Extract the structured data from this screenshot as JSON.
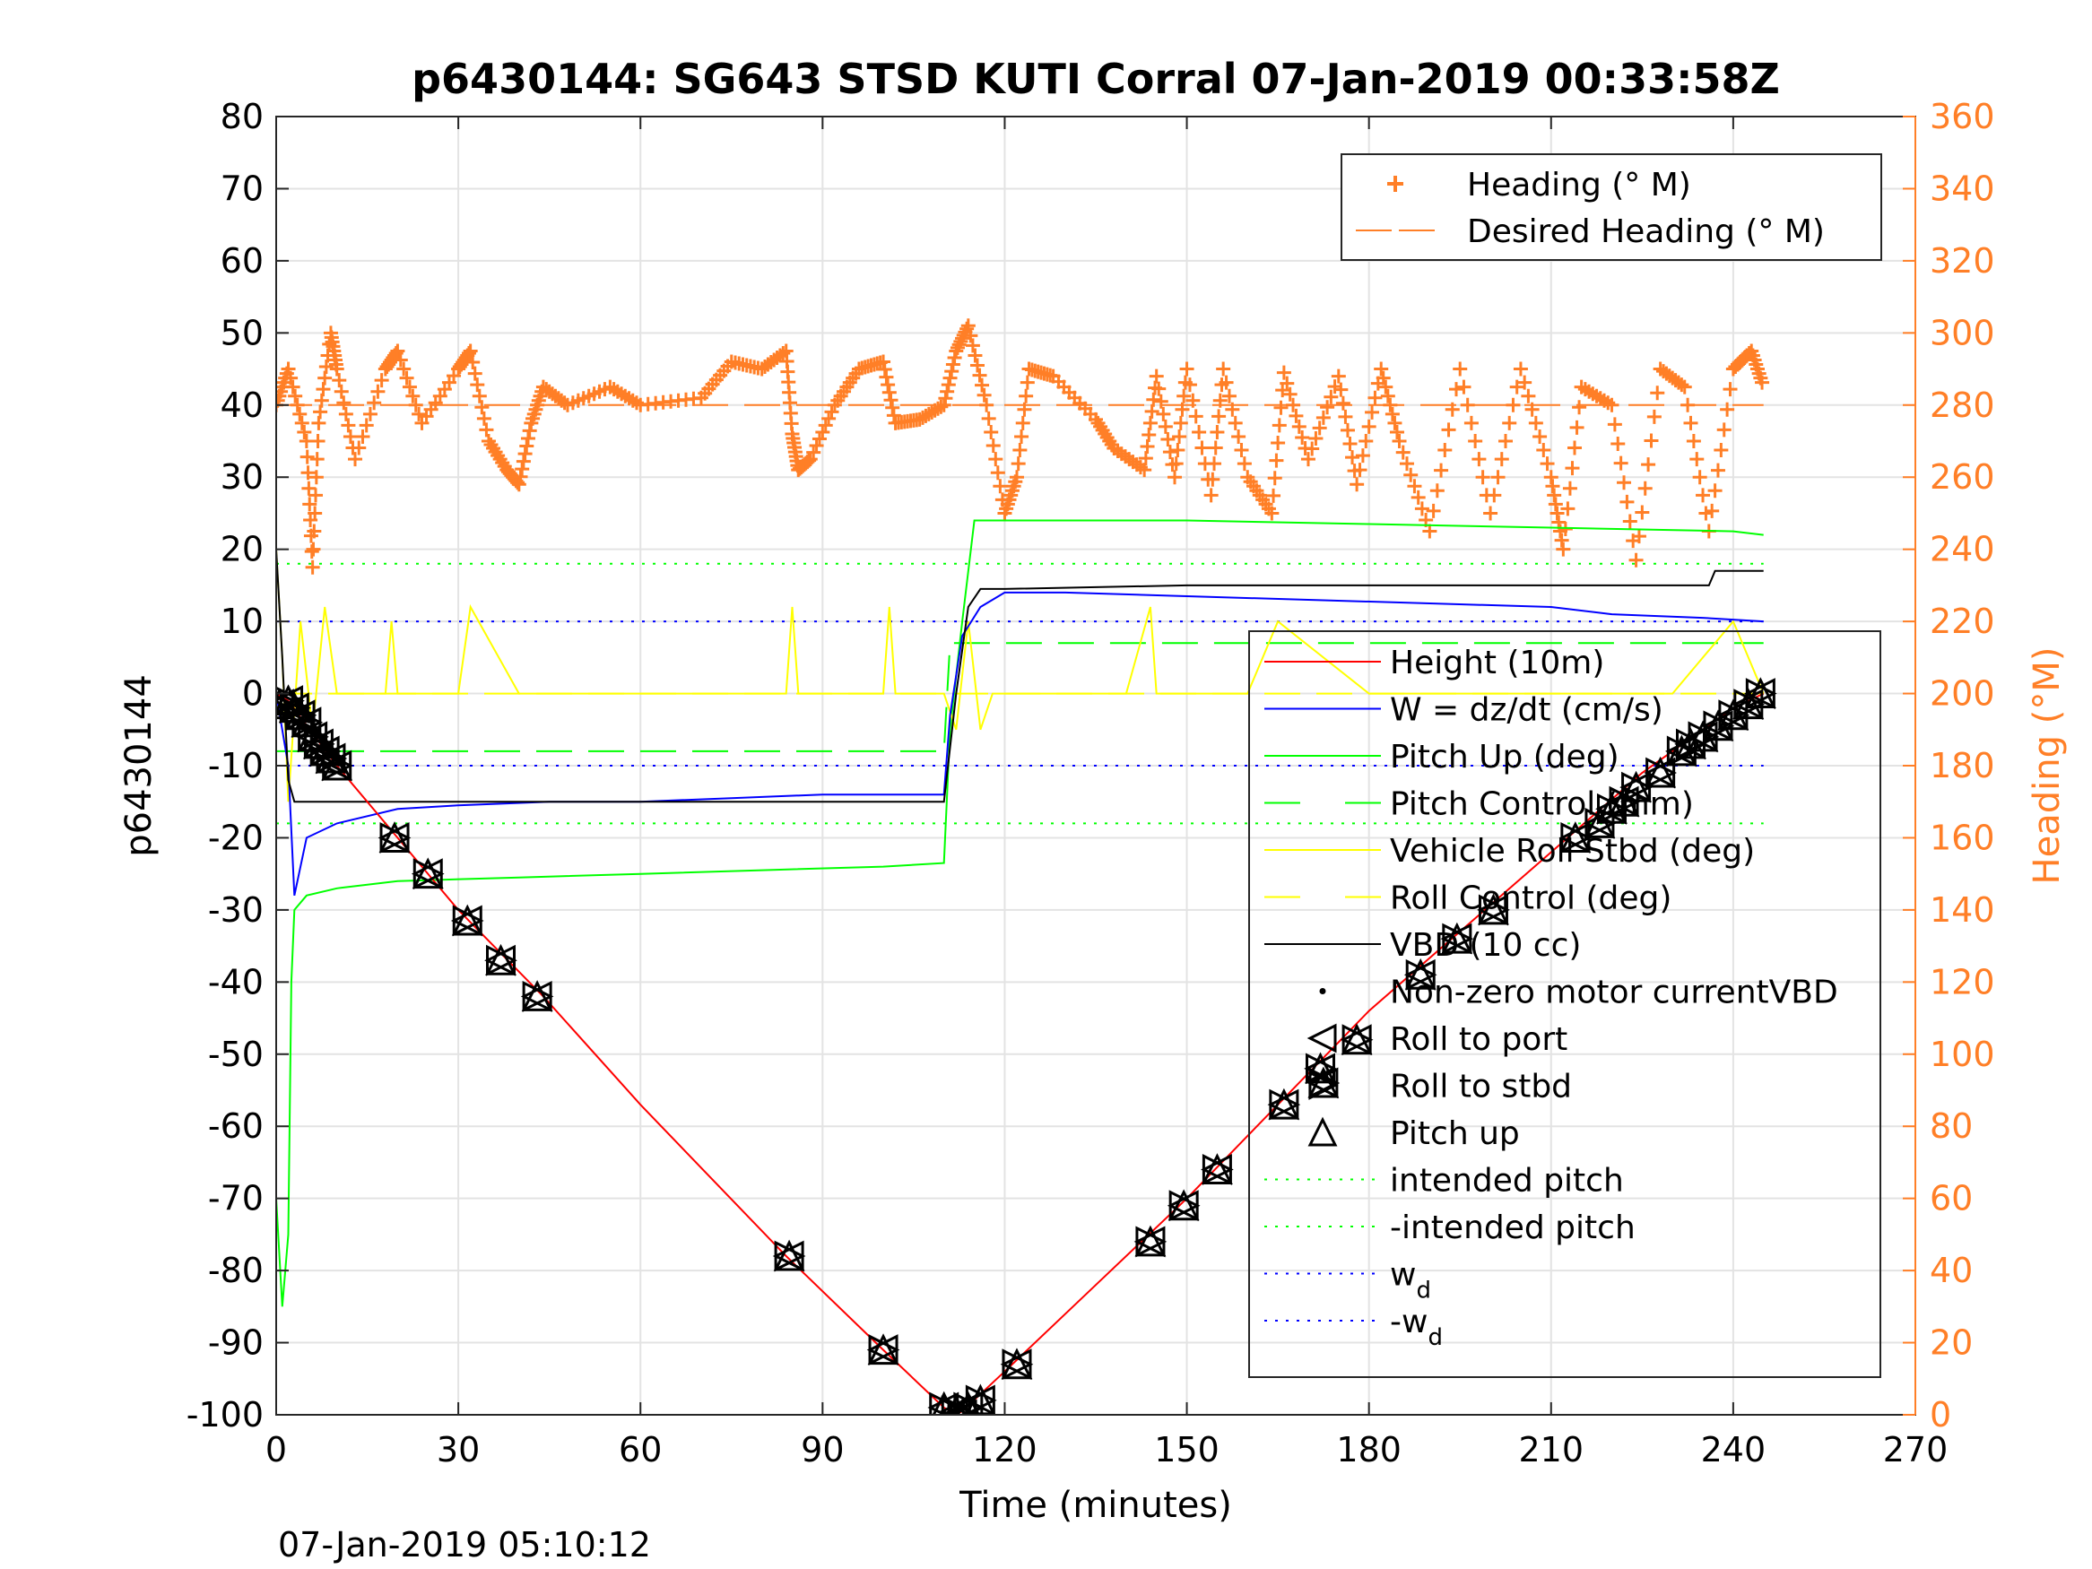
{
  "chart_data": {
    "type": "line",
    "title": "p6430144: SG643 STSD KUTI Corral 07-Jan-2019 00:33:58Z",
    "xlabel": "Time (minutes)",
    "ylabel": "p6430144",
    "y2label": "Heading (°M)",
    "timestamp": "07-Jan-2019 05:10:12",
    "xlim": [
      0,
      270
    ],
    "ylim": [
      -100,
      80
    ],
    "y2lim": [
      0,
      360
    ],
    "xticks": [
      0,
      30,
      60,
      90,
      120,
      150,
      180,
      210,
      240,
      270
    ],
    "yticks": [
      -100,
      -90,
      -80,
      -70,
      -60,
      -50,
      -40,
      -30,
      -20,
      -10,
      0,
      10,
      20,
      30,
      40,
      50,
      60,
      70,
      80
    ],
    "y2ticks": [
      0,
      20,
      40,
      60,
      80,
      100,
      120,
      140,
      160,
      180,
      200,
      220,
      240,
      260,
      280,
      300,
      320,
      340,
      360
    ],
    "grid": true,
    "colors": {
      "height": "#ff0000",
      "w": "#0000ff",
      "pitch": "#00ff00",
      "roll": "#ffff00",
      "vbd": "#000000",
      "heading": "#ff7f27"
    },
    "legend_heading": [
      {
        "label": "Heading (° M)",
        "style": "plus",
        "color": "#ff7f27"
      },
      {
        "label": "Desired Heading (° M)",
        "style": "dash",
        "color": "#ff7f27"
      }
    ],
    "legend_main": [
      {
        "label": "Height (10m)",
        "style": "solid",
        "color": "#ff0000"
      },
      {
        "label": "W = dz/dt (cm/s)",
        "style": "solid",
        "color": "#0000ff"
      },
      {
        "label": "Pitch Up (deg)",
        "style": "solid",
        "color": "#00ff00"
      },
      {
        "label": "Pitch Control (mm)",
        "style": "dash",
        "color": "#00ff00"
      },
      {
        "label": "Vehicle Roll Stbd (deg)",
        "style": "solid",
        "color": "#ffff00"
      },
      {
        "label": "Roll Control (deg)",
        "style": "dash",
        "color": "#ffff00"
      },
      {
        "label": "VBD (10 cc)",
        "style": "solid",
        "color": "#000000"
      },
      {
        "label": "Non-zero motor currentVBD",
        "style": "dot",
        "color": "#000000"
      },
      {
        "label": "Roll to port",
        "style": "tri-left",
        "color": "#000000"
      },
      {
        "label": "Roll to stbd",
        "style": "tri-right",
        "color": "#000000"
      },
      {
        "label": "Pitch up",
        "style": "tri-up",
        "color": "#000000"
      },
      {
        "label": "intended pitch",
        "style": "dotted",
        "color": "#00ff00"
      },
      {
        "label": "-intended pitch",
        "style": "dotted",
        "color": "#00ff00"
      },
      {
        "label": "w",
        "sub": "d",
        "style": "dotted",
        "color": "#0000ff"
      },
      {
        "label": "-w",
        "sub": "d",
        "style": "dotted",
        "color": "#0000ff"
      }
    ],
    "series": [
      {
        "name": "Height (10m)",
        "x": [
          0,
          2,
          10,
          20,
          30,
          44,
          60,
          84,
          100,
          110,
          112,
          113,
          120,
          135,
          150,
          165,
          180,
          195,
          210,
          225,
          240,
          245
        ],
        "y": [
          0,
          -1,
          -10,
          -20,
          -30,
          -42,
          -57,
          -78,
          -91,
          -99,
          -100,
          -99.5,
          -94,
          -82,
          -70,
          -57,
          -44,
          -33,
          -22,
          -11,
          -2,
          0
        ]
      },
      {
        "name": "W = dz/dt (cm/s)",
        "x": [
          0,
          2,
          3,
          5,
          10,
          20,
          30,
          45,
          60,
          75,
          90,
          100,
          110,
          111,
          113,
          116,
          120,
          130,
          150,
          170,
          190,
          210,
          220,
          235,
          245
        ],
        "y": [
          0,
          -10,
          -28,
          -20,
          -18,
          -16,
          -15.5,
          -15,
          -15,
          -14.5,
          -14,
          -14,
          -14,
          -3,
          8,
          12,
          14,
          14,
          13.5,
          13,
          12.5,
          12,
          11,
          10.5,
          10
        ]
      },
      {
        "name": "Pitch Up (deg)",
        "x": [
          0,
          1,
          2,
          2.5,
          3,
          5,
          10,
          20,
          40,
          60,
          80,
          100,
          110,
          111,
          113,
          115,
          120,
          150,
          180,
          210,
          240,
          245
        ],
        "y": [
          -70,
          -85,
          -75,
          -40,
          -30,
          -28,
          -27,
          -26,
          -25.5,
          -25,
          -24.5,
          -24,
          -23.5,
          -5,
          10,
          24,
          24,
          24,
          23.5,
          23,
          22.5,
          22
        ]
      },
      {
        "name": "Vehicle Roll Stbd (deg)",
        "x": [
          0,
          1,
          2,
          4,
          6,
          8,
          10,
          18,
          19,
          20,
          30,
          32,
          40,
          60,
          84,
          85,
          86,
          100,
          101,
          102,
          110,
          112,
          114,
          116,
          118,
          120,
          140,
          144,
          145,
          150,
          160,
          165,
          180,
          210,
          220,
          230,
          240,
          245
        ],
        "y": [
          20,
          5,
          -15,
          10,
          -5,
          12,
          0,
          0,
          10,
          0,
          0,
          12,
          0,
          0,
          0,
          12,
          0,
          0,
          12,
          0,
          0,
          -5,
          10,
          -5,
          0,
          0,
          0,
          12,
          0,
          0,
          0,
          10,
          0,
          0,
          0,
          0,
          10,
          0
        ]
      },
      {
        "name": "VBD (10 cc)",
        "x": [
          0,
          1,
          2,
          3,
          10,
          40,
          80,
          110,
          112,
          114,
          116,
          120,
          150,
          180,
          210,
          236,
          237,
          238,
          245
        ],
        "y": [
          20,
          5,
          -12,
          -15,
          -15,
          -15,
          -15,
          -15,
          0,
          12,
          14.5,
          14.5,
          15,
          15,
          15,
          15,
          17,
          17,
          17
        ]
      },
      {
        "name": "Heading (° M)",
        "axis": "right",
        "x": [
          0,
          2,
          5,
          6,
          7,
          9,
          10,
          13,
          18,
          20,
          24,
          30,
          32,
          35,
          38,
          40,
          42,
          44,
          48,
          55,
          60,
          70,
          75,
          80,
          84,
          85,
          86,
          88,
          92,
          96,
          100,
          102,
          106,
          110,
          112,
          114,
          117,
          120,
          122,
          124,
          128,
          135,
          138,
          143,
          145,
          148,
          150,
          154,
          156,
          160,
          164,
          166,
          170,
          175,
          178,
          182,
          185,
          190,
          195,
          200,
          205,
          210,
          212,
          215,
          220,
          224,
          228,
          232,
          236,
          240,
          243,
          245
        ],
        "y": [
          280,
          290,
          270,
          235,
          275,
          300,
          290,
          265,
          290,
          295,
          275,
          290,
          295,
          270,
          262,
          258,
          275,
          285,
          280,
          285,
          280,
          282,
          292,
          290,
          295,
          272,
          262,
          265,
          280,
          290,
          292,
          275,
          276,
          280,
          295,
          302,
          280,
          250,
          260,
          290,
          288,
          276,
          268,
          262,
          288,
          260,
          290,
          255,
          290,
          260,
          250,
          289,
          265,
          288,
          258,
          290,
          270,
          245,
          290,
          250,
          290,
          260,
          240,
          285,
          280,
          237,
          290,
          285,
          245,
          290,
          295,
          285
        ]
      },
      {
        "name": "Desired Heading (° M)",
        "axis": "right",
        "x": [
          0,
          245
        ],
        "y": [
          280,
          280
        ]
      },
      {
        "name": "intended pitch",
        "x": [
          0,
          245
        ],
        "y": [
          18,
          18
        ]
      },
      {
        "name": "-intended pitch",
        "x": [
          0,
          245
        ],
        "y": [
          -18,
          -18
        ]
      },
      {
        "name": "w_d",
        "x": [
          0,
          245
        ],
        "y": [
          10,
          10
        ]
      },
      {
        "name": "-w_d",
        "x": [
          0,
          245
        ],
        "y": [
          -10,
          -10
        ]
      },
      {
        "name": "Pitch Control (mm)",
        "x": [
          0,
          110,
          111,
          245
        ],
        "y": [
          -8,
          -8,
          7,
          7
        ]
      },
      {
        "name": "Roll Control (deg)",
        "x": [
          0,
          245
        ],
        "y": [
          0,
          0
        ]
      }
    ],
    "markers": {
      "x": [
        0.5,
        2,
        3,
        4,
        5,
        6,
        7,
        8,
        9,
        10,
        19.5,
        25,
        31.5,
        37,
        43,
        84.5,
        100,
        110,
        112,
        113,
        114,
        116,
        122,
        144,
        149.5,
        155,
        166,
        172,
        172.5,
        178,
        188.5,
        194.5,
        200.5,
        214,
        218,
        220,
        222,
        224,
        228,
        231.5,
        233,
        235,
        237.5,
        240,
        242.5,
        244.5
      ],
      "y": [
        -1.5,
        -1,
        -2,
        -3,
        -4,
        -6,
        -7,
        -8,
        -9,
        -10,
        -20,
        -25,
        -31.5,
        -37,
        -42,
        -78,
        -91,
        -99,
        -99.5,
        -100,
        -99,
        -98,
        -93,
        -76,
        -71,
        -66,
        -57,
        -52,
        -54,
        -48,
        -39,
        -34,
        -30,
        -20,
        -18,
        -16,
        -15,
        -13,
        -11,
        -8,
        -7,
        -6,
        -4.5,
        -3,
        -1.5,
        0
      ]
    }
  }
}
